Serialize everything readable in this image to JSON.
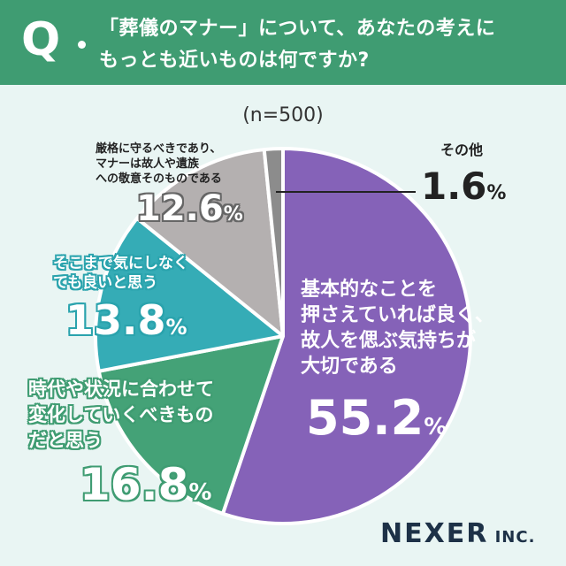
{
  "header": {
    "q_mark": "Q",
    "line1": "「葬儀のマナー」について、あなたの考えに",
    "line2": "もっとも近いものは何ですか?"
  },
  "sample_label": "(n=500)",
  "chart_data": {
    "type": "pie",
    "slices": [
      {
        "label": "基本的なことを押さえていれば良く、故人を偲ぶ気持ちが大切である",
        "value": 55.2,
        "color": "#8562b8"
      },
      {
        "label": "時代や状況に合わせて変化していくべきものだと思う",
        "value": 16.8,
        "color": "#44a277"
      },
      {
        "label": "そこまで気にしなくても良いと思う",
        "value": 13.8,
        "color": "#35acb6"
      },
      {
        "label": "厳格に守るべきであり、マナーは故人や遺族への敬意そのものである",
        "value": 12.6,
        "color": "#b4b0b0"
      },
      {
        "label": "その他",
        "value": 1.6,
        "color": "#8c8c8c"
      }
    ]
  },
  "labels": {
    "s0": {
      "lines": [
        "基本的なことを",
        "押さえていれば良く、",
        "故人を偲ぶ気持ちが",
        "大切である"
      ],
      "num": "55.2",
      "unit": "%"
    },
    "s1": {
      "lines": [
        "時代や状況に合わせて",
        "変化していくべきもの",
        "だと思う"
      ],
      "num": "16.8",
      "unit": "%"
    },
    "s2": {
      "lines": [
        "そこまで気にしなく",
        "ても良いと思う"
      ],
      "num": "13.8",
      "unit": "%"
    },
    "s3": {
      "lines": [
        "厳格に守るべきであり、",
        "マナーは故人や遺族",
        "への敬意そのものである"
      ],
      "num": "12.6",
      "unit": "%"
    },
    "s4": {
      "lines": [
        "その他"
      ],
      "num": "1.6",
      "unit": "%"
    }
  },
  "brand": {
    "name": "NEXER",
    "suffix": " INC."
  }
}
